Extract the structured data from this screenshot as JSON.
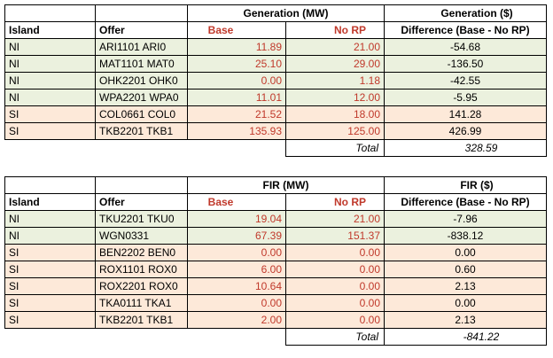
{
  "tables": [
    {
      "group_title": "Generation (MW)",
      "diff_title": "Generation ($)",
      "col_island": "Island",
      "col_offer": "Offer",
      "col_base": "Base",
      "col_norp": "No RP",
      "col_diff": "Difference (Base - No RP)",
      "rows": [
        {
          "island": "NI",
          "offer": "ARI1101 ARI0",
          "base": "11.89",
          "norp": "21.00",
          "diff": "-54.68"
        },
        {
          "island": "NI",
          "offer": "MAT1101 MAT0",
          "base": "25.10",
          "norp": "29.00",
          "diff": "-136.50"
        },
        {
          "island": "NI",
          "offer": "OHK2201 OHK0",
          "base": "0.00",
          "norp": "1.18",
          "diff": "-42.55"
        },
        {
          "island": "NI",
          "offer": "WPA2201 WPA0",
          "base": "11.01",
          "norp": "12.00",
          "diff": "-5.95"
        },
        {
          "island": "SI",
          "offer": "COL0661 COL0",
          "base": "21.52",
          "norp": "18.00",
          "diff": "141.28"
        },
        {
          "island": "SI",
          "offer": "TKB2201 TKB1",
          "base": "135.93",
          "norp": "125.00",
          "diff": "426.99"
        }
      ],
      "total_label": "Total",
      "total_value": "328.59"
    },
    {
      "group_title": "FIR (MW)",
      "diff_title": "FIR ($)",
      "col_island": "Island",
      "col_offer": "Offer",
      "col_base": "Base",
      "col_norp": "No RP",
      "col_diff": "Difference (Base - No RP)",
      "rows": [
        {
          "island": "NI",
          "offer": "TKU2201 TKU0",
          "base": "19.04",
          "norp": "21.00",
          "diff": "-7.96"
        },
        {
          "island": "NI",
          "offer": "WGN0331",
          "base": "67.39",
          "norp": "151.37",
          "diff": "-838.12"
        },
        {
          "island": "SI",
          "offer": "BEN2202 BEN0",
          "base": "0.00",
          "norp": "0.00",
          "diff": "0.00"
        },
        {
          "island": "SI",
          "offer": "ROX1101 ROX0",
          "base": "6.00",
          "norp": "0.00",
          "diff": "0.60"
        },
        {
          "island": "SI",
          "offer": "ROX2201 ROX0",
          "base": "10.64",
          "norp": "0.00",
          "diff": "2.13"
        },
        {
          "island": "SI",
          "offer": "TKA0111 TKA1",
          "base": "0.00",
          "norp": "0.00",
          "diff": "0.00"
        },
        {
          "island": "SI",
          "offer": "TKB2201 TKB1",
          "base": "2.00",
          "norp": "0.00",
          "diff": "2.13"
        }
      ],
      "total_label": "Total",
      "total_value": "-841.22"
    }
  ],
  "colors": {
    "ni_fill": "#ebf1de",
    "si_fill": "#fde9d9",
    "mw_text": "#c0392b"
  }
}
